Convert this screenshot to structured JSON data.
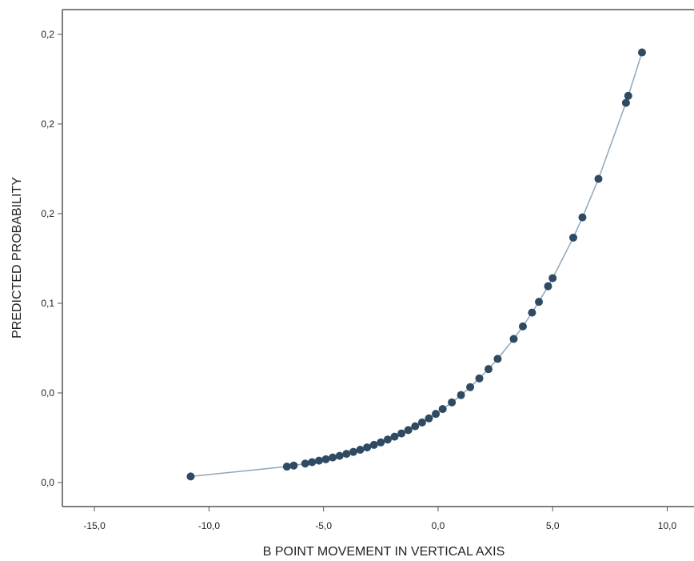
{
  "chart_data": {
    "type": "scatter",
    "x_label": "B POINT MOVEMENT IN VERTICAL AXIS",
    "y_label": "PREDICTED PROBABILITY",
    "connect": true,
    "line_color": "#8fa6bb",
    "series": [
      {
        "color": "#2f4a63",
        "x": [
          -10.8,
          -6.6,
          -6.3,
          -5.8,
          -5.5,
          -5.2,
          -4.9,
          -4.6,
          -4.3,
          -4.0,
          -3.7,
          -3.4,
          -3.1,
          -2.8,
          -2.5,
          -2.2,
          -1.9,
          -1.6,
          -1.3,
          -1.0,
          -0.7,
          -0.4,
          -0.1,
          0.2,
          0.6,
          1.0,
          1.4,
          1.8,
          2.2,
          2.6,
          3.3,
          3.7,
          4.1,
          4.4,
          4.8,
          5.0,
          5.9,
          6.3,
          7.0,
          8.2,
          8.3,
          8.9
        ],
        "values": [
          0.0034,
          0.0089,
          0.0095,
          0.0106,
          0.0114,
          0.0122,
          0.013,
          0.014,
          0.0149,
          0.016,
          0.0171,
          0.0183,
          0.0196,
          0.021,
          0.0224,
          0.024,
          0.0256,
          0.0274,
          0.0293,
          0.0314,
          0.0335,
          0.0358,
          0.0383,
          0.041,
          0.0447,
          0.0488,
          0.0532,
          0.0581,
          0.0633,
          0.069,
          0.0801,
          0.0871,
          0.0948,
          0.1008,
          0.1095,
          0.114,
          0.1366,
          0.1479,
          0.1694,
          0.2118,
          0.2157,
          0.2399
        ]
      }
    ],
    "xlim": [
      -16.4,
      11.1
    ],
    "ylim": [
      -0.0134,
      0.2638
    ],
    "xticks": [
      {
        "value": -15,
        "label": "-15,0"
      },
      {
        "value": -10,
        "label": "-10,0"
      },
      {
        "value": -5,
        "label": "-5,0"
      },
      {
        "value": 0,
        "label": "0,0"
      },
      {
        "value": 5,
        "label": "5,0"
      },
      {
        "value": 10,
        "label": "10,0"
      }
    ],
    "yticks": [
      {
        "value": 0,
        "label": "0,0"
      },
      {
        "value": 0.05,
        "label": "0,0"
      },
      {
        "value": 0.1,
        "label": "0,1"
      },
      {
        "value": 0.15,
        "label": "0,2"
      },
      {
        "value": 0.2,
        "label": "0,2"
      },
      {
        "value": 0.25,
        "label": "0,2"
      }
    ]
  }
}
